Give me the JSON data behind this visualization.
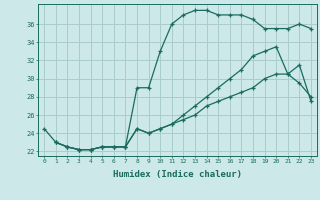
{
  "xlabel": "Humidex (Indice chaleur)",
  "bg_color": "#cce8e8",
  "grid_color": "#aacccc",
  "line_color": "#1a6b60",
  "xlim": [
    -0.5,
    23.5
  ],
  "ylim": [
    21.5,
    38.2
  ],
  "xticks": [
    0,
    1,
    2,
    3,
    4,
    5,
    6,
    7,
    8,
    9,
    10,
    11,
    12,
    13,
    14,
    15,
    16,
    17,
    18,
    19,
    20,
    21,
    22,
    23
  ],
  "yticks": [
    22,
    24,
    26,
    28,
    30,
    32,
    34,
    36
  ],
  "curve1_x": [
    0,
    1,
    2,
    3,
    4,
    5,
    6,
    7,
    8,
    9,
    10,
    11,
    12,
    13,
    14,
    15,
    16,
    17,
    18,
    19,
    20,
    21,
    22,
    23
  ],
  "curve1_y": [
    24.5,
    23.0,
    22.5,
    22.2,
    22.2,
    22.5,
    22.5,
    22.5,
    29.0,
    29.0,
    33.0,
    36.0,
    37.0,
    37.5,
    37.5,
    37.0,
    37.0,
    37.0,
    36.5,
    35.5,
    35.5,
    35.5,
    36.0,
    35.5
  ],
  "curve2_x": [
    1,
    2,
    3,
    4,
    5,
    6,
    7,
    8,
    9,
    10,
    11,
    12,
    13,
    14,
    15,
    16,
    17,
    18,
    19,
    20,
    21,
    22,
    23
  ],
  "curve2_y": [
    23.0,
    22.5,
    22.2,
    22.2,
    22.5,
    22.5,
    22.5,
    24.5,
    24.0,
    24.5,
    25.0,
    26.0,
    27.0,
    28.0,
    29.0,
    30.0,
    31.0,
    32.5,
    33.0,
    33.5,
    30.5,
    29.5,
    28.0
  ],
  "curve3_x": [
    1,
    2,
    3,
    4,
    5,
    6,
    7,
    8,
    9,
    10,
    11,
    12,
    13,
    14,
    15,
    16,
    17,
    18,
    19,
    20,
    21,
    22,
    23
  ],
  "curve3_y": [
    23.0,
    22.5,
    22.2,
    22.2,
    22.5,
    22.5,
    22.5,
    24.5,
    24.0,
    24.5,
    25.0,
    25.5,
    26.0,
    27.0,
    27.5,
    28.0,
    28.5,
    29.0,
    30.0,
    30.5,
    30.5,
    31.5,
    27.5
  ]
}
